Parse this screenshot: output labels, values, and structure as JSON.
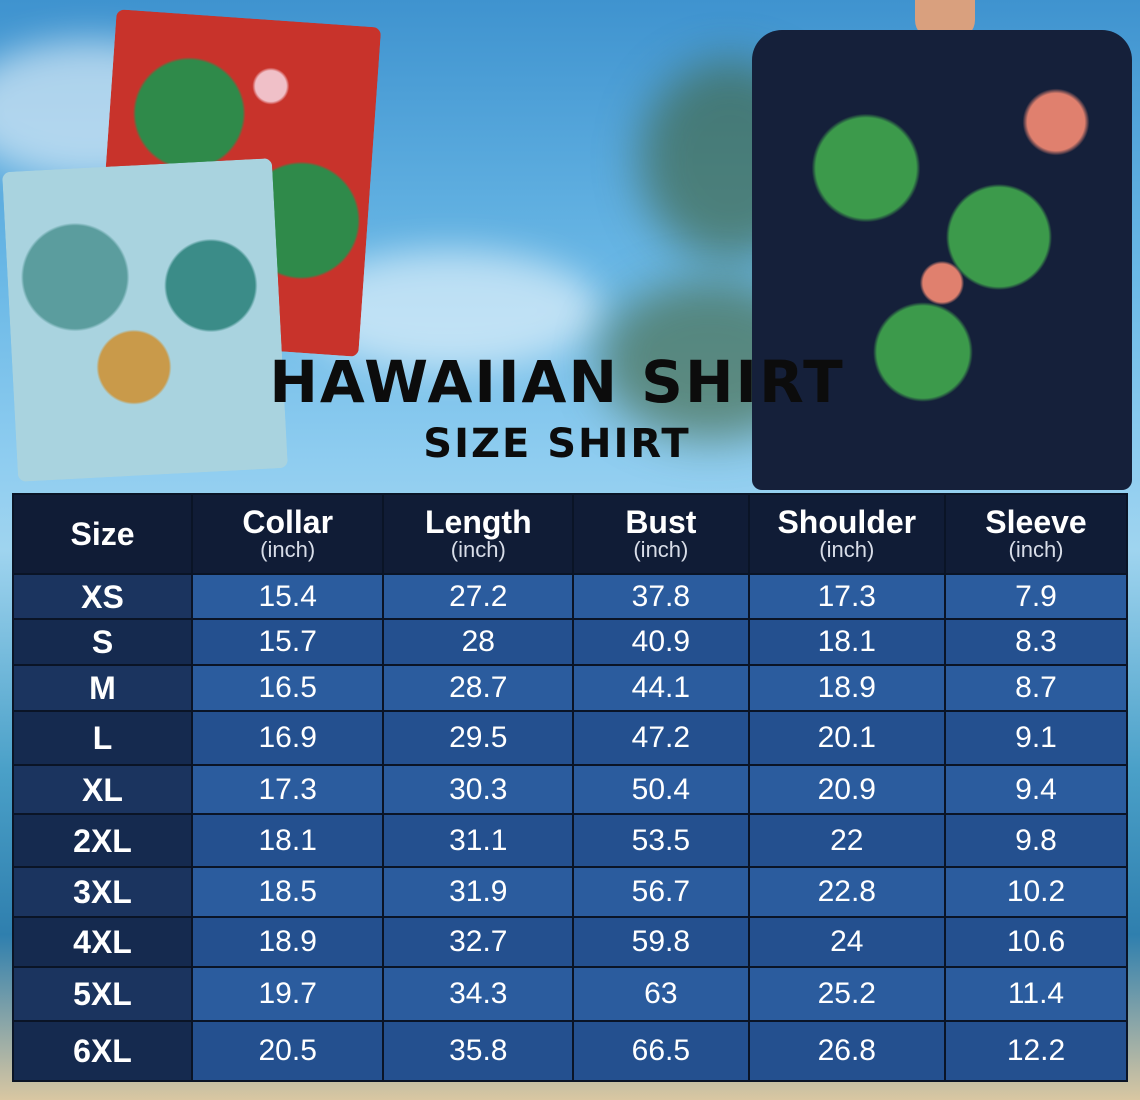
{
  "title": "HAWAIIAN SHIRT",
  "subtitle": "SIZE SHIRT",
  "colors": {
    "header_bg": "#101c36",
    "size_col_bg": "#1b345f",
    "cell_bg": "#2b5c9e",
    "text": "#ffffff"
  },
  "table": {
    "headers": [
      {
        "label": "Size",
        "unit": ""
      },
      {
        "label": "Collar",
        "unit": "(inch)"
      },
      {
        "label": "Length",
        "unit": "(inch)"
      },
      {
        "label": "Bust",
        "unit": "(inch)"
      },
      {
        "label": "Shoulder",
        "unit": "(inch)"
      },
      {
        "label": "Sleeve",
        "unit": "(inch)"
      }
    ],
    "rows": [
      [
        "XS",
        "15.4",
        "27.2",
        "37.8",
        "17.3",
        "7.9"
      ],
      [
        "S",
        "15.7",
        "28",
        "40.9",
        "18.1",
        "8.3"
      ],
      [
        "M",
        "16.5",
        "28.7",
        "44.1",
        "18.9",
        "8.7"
      ],
      [
        "L",
        "16.9",
        "29.5",
        "47.2",
        "20.1",
        "9.1"
      ],
      [
        "XL",
        "17.3",
        "30.3",
        "50.4",
        "20.9",
        "9.4"
      ],
      [
        "2XL",
        "18.1",
        "31.1",
        "53.5",
        "22",
        "9.8"
      ],
      [
        "3XL",
        "18.5",
        "31.9",
        "56.7",
        "22.8",
        "10.2"
      ],
      [
        "4XL",
        "18.9",
        "32.7",
        "59.8",
        "24",
        "10.6"
      ],
      [
        "5XL",
        "19.7",
        "34.3",
        "63",
        "25.2",
        "11.4"
      ],
      [
        "6XL",
        "20.5",
        "35.8",
        "66.5",
        "26.8",
        "12.2"
      ]
    ]
  }
}
